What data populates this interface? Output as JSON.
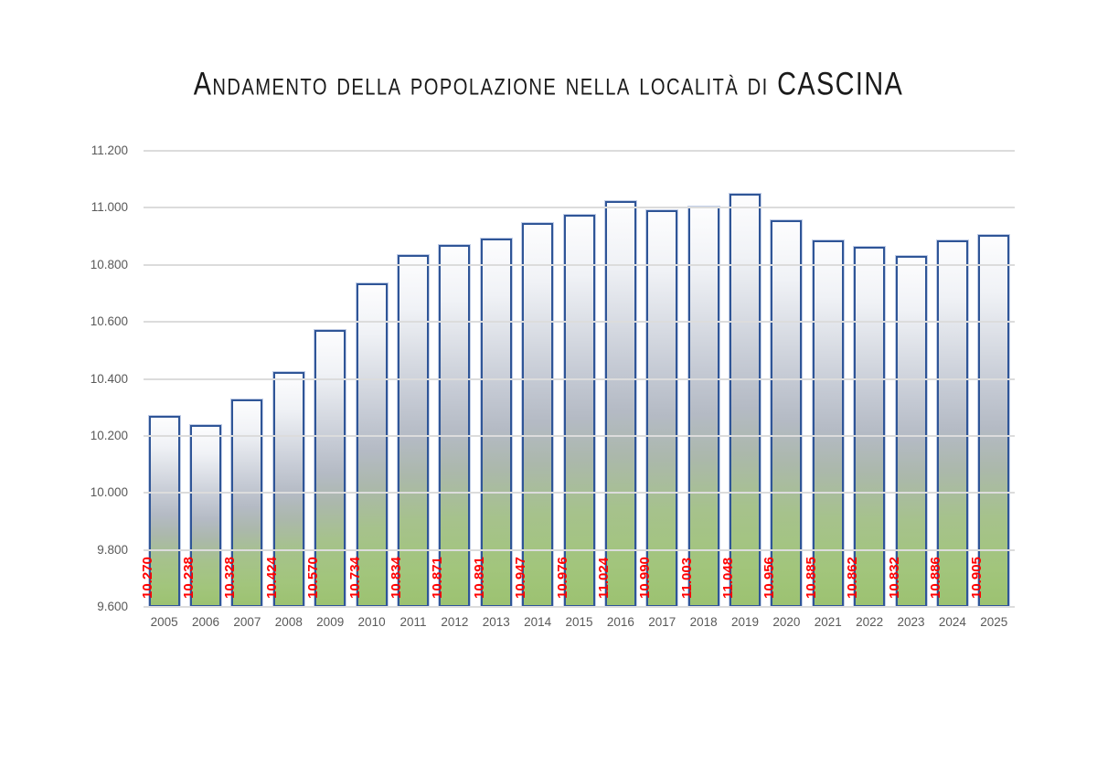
{
  "title": "Andamento della popolazione nella località di CASCINA",
  "chart_data": {
    "type": "bar",
    "title": "Andamento della popolazione nella località di CASCINA",
    "categories": [
      "2005",
      "2006",
      "2007",
      "2008",
      "2009",
      "2010",
      "2011",
      "2012",
      "2013",
      "2014",
      "2015",
      "2016",
      "2017",
      "2018",
      "2019",
      "2020",
      "2021",
      "2022",
      "2023",
      "2024",
      "2025"
    ],
    "values": [
      10270,
      10238,
      10328,
      10424,
      10570,
      10734,
      10834,
      10871,
      10891,
      10947,
      10976,
      11024,
      10990,
      11003,
      11048,
      10956,
      10885,
      10862,
      10832,
      10886,
      10905
    ],
    "value_labels": [
      "10.270",
      "10.238",
      "10.328",
      "10.424",
      "10.570",
      "10.734",
      "10.834",
      "10.871",
      "10.891",
      "10.947",
      "10.976",
      "11.024",
      "10.990",
      "11.003",
      "11.048",
      "10.956",
      "10.885",
      "10.862",
      "10.832",
      "10.886",
      "10.905"
    ],
    "xlabel": "",
    "ylabel": "",
    "ylim": [
      9600,
      11200
    ],
    "ytick_step": 200,
    "ytick_labels": [
      "9.600",
      "9.800",
      "10.000",
      "10.200",
      "10.400",
      "10.600",
      "10.800",
      "11.000",
      "11.200"
    ],
    "grid": "horizontal",
    "legend": "none",
    "colors": {
      "bar_border": "#2f5597",
      "bar_border_glow": "rgba(143,166,211,0.55)",
      "bar_gradient": [
        "#fdfdfe",
        "#f0f2f6",
        "#c6cbd5",
        "#b4bac4",
        "#abb8ab",
        "#a6c28c",
        "#a2c57c",
        "#9cc271"
      ],
      "value_label": "#ff0000",
      "axis_text": "#595959",
      "gridline": "#dcdcdc",
      "title_text": "#1a1a1a"
    }
  }
}
